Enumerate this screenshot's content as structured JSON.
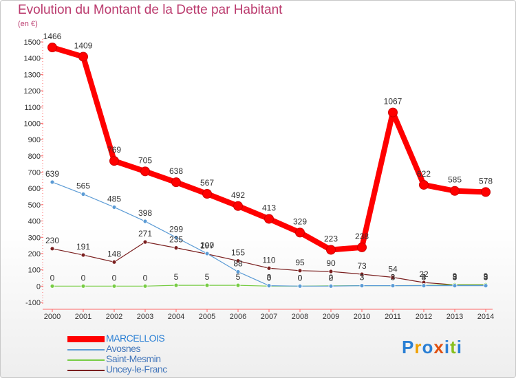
{
  "title": "Evolution du Montant de la Dette par Habitant",
  "unit": "(en €)",
  "logo": [
    "P",
    "r",
    "o",
    "x",
    "i",
    "t",
    "i"
  ],
  "logo_colors": [
    "#2a7fd4",
    "#f0a000",
    "#2a7fd4",
    "#e05010",
    "#2a7fd4",
    "#88c020",
    "#2a7fd4"
  ],
  "chart_data": {
    "type": "line",
    "title": "Evolution du Montant de la Dette par Habitant",
    "ylabel": "(en €)",
    "xlabel": "",
    "x": [
      "2000",
      "2001",
      "2002",
      "2003",
      "2004",
      "2005",
      "2006",
      "2007",
      "2008",
      "2009",
      "2010",
      "2011",
      "2012",
      "2013",
      "2014"
    ],
    "ylim": [
      -100,
      1500
    ],
    "yticks": [
      "-100",
      "0",
      "100",
      "200",
      "300",
      "400",
      "500",
      "600",
      "700",
      "800",
      "900",
      "1000",
      "1100",
      "1200",
      "1300",
      "1400",
      "1500"
    ],
    "grid": false,
    "legend_position": "bottom-left",
    "series": [
      {
        "name": "MARCELLOIS",
        "color": "#ff0000",
        "values": [
          1466,
          1409,
          769,
          705,
          638,
          567,
          492,
          413,
          329,
          223,
          238,
          1067,
          622,
          585,
          578
        ],
        "labels": [
          "1466",
          "1409",
          "769",
          "705",
          "638",
          "567",
          "492",
          "413",
          "329",
          "223",
          "238",
          "1067",
          "622",
          "585",
          "578"
        ]
      },
      {
        "name": "Avosnes",
        "color": "#5b9bd5",
        "values": [
          639,
          565,
          485,
          398,
          299,
          200,
          88,
          3,
          0,
          0,
          3,
          3,
          3,
          3,
          3
        ],
        "labels": [
          "639",
          "565",
          "485",
          "398",
          "299",
          "200",
          "88",
          "3",
          "0",
          "0",
          "3",
          "3",
          "3",
          "3",
          "3"
        ]
      },
      {
        "name": "Saint-Mesmin",
        "color": "#77cc44",
        "values": [
          0,
          0,
          0,
          0,
          5,
          5,
          5,
          0,
          0,
          2,
          3,
          3,
          4,
          9,
          9
        ],
        "labels": [
          "0",
          "0",
          "0",
          "0",
          "5",
          "5",
          "5",
          "0",
          "0",
          "2",
          "3",
          "3",
          "4",
          "9",
          "9"
        ]
      },
      {
        "name": "Uncey-le-Franc",
        "color": "#7a1f1f",
        "values": [
          230,
          191,
          148,
          271,
          235,
          197,
          155,
          110,
          95,
          90,
          73,
          54,
          22,
          8,
          8
        ],
        "labels": [
          "230",
          "191",
          "148",
          "271",
          "235",
          "197",
          "155",
          "110",
          "95",
          "90",
          "73",
          "54",
          "22",
          "8",
          "8"
        ]
      }
    ]
  }
}
